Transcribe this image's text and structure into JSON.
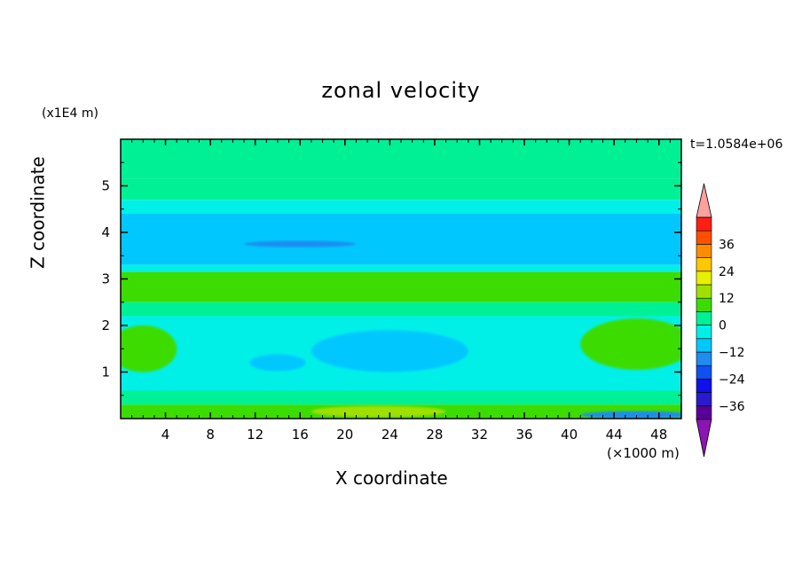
{
  "chart_data": {
    "type": "heatmap",
    "title": "zonal velocity",
    "xlabel": "X coordinate",
    "ylabel": "Z coordinate",
    "x_unit": "(×1000 m)",
    "y_unit": "(x1E4 m)",
    "timestamp": "t=1.0584e+06",
    "xlim": [
      0,
      50
    ],
    "ylim": [
      0,
      6
    ],
    "x_ticks": [
      4,
      8,
      12,
      16,
      20,
      24,
      28,
      32,
      36,
      40,
      44,
      48
    ],
    "y_ticks": [
      1,
      2,
      3,
      4,
      5
    ],
    "colorbar": {
      "ticks": [
        36,
        24,
        12,
        0,
        -12,
        -24,
        -36
      ],
      "levels": [
        -42,
        -36,
        -30,
        -24,
        -18,
        -12,
        -6,
        0,
        6,
        12,
        18,
        24,
        30,
        36,
        42
      ],
      "colors": [
        "#5a009a",
        "#2a1acd",
        "#1010e8",
        "#1050f0",
        "#1e8cf0",
        "#00c8ff",
        "#00f0e8",
        "#00f096",
        "#3cdc00",
        "#a0e000",
        "#e6f000",
        "#ffc800",
        "#ff8c00",
        "#ff5000",
        "#ff1e14"
      ],
      "under_color": "#8c14b4",
      "over_color": "#ffa0a0"
    },
    "bands": [
      {
        "z_top": 6.0,
        "z_bottom": 5.4,
        "value": 3
      },
      {
        "z_top": 5.4,
        "z_bottom": 5.15,
        "value": 0
      },
      {
        "z_top": 5.15,
        "z_bottom": 4.7,
        "value": 3
      },
      {
        "z_top": 4.7,
        "z_bottom": 4.4,
        "value": -3
      },
      {
        "z_top": 4.4,
        "z_bottom": 3.3,
        "value": -9
      },
      {
        "z_top": 3.3,
        "z_bottom": 3.15,
        "value": -3
      },
      {
        "z_top": 3.15,
        "z_bottom": 2.5,
        "value": 8
      },
      {
        "z_top": 2.5,
        "z_bottom": 2.2,
        "value": 3
      },
      {
        "z_top": 2.2,
        "z_bottom": 0.6,
        "value": -3
      },
      {
        "z_top": 0.6,
        "z_bottom": 0.3,
        "value": 3
      },
      {
        "z_top": 0.3,
        "z_bottom": 0.0,
        "value": 8
      }
    ],
    "features": [
      {
        "shape": "ellipse",
        "x": 24,
        "z": 1.45,
        "rx": 7,
        "rz": 0.45,
        "value": -9
      },
      {
        "shape": "ellipse",
        "x": 16,
        "z": 3.75,
        "rx": 5,
        "rz": 0.07,
        "value": -15
      },
      {
        "shape": "ellipse",
        "x": 46,
        "z": 1.6,
        "rx": 5,
        "rz": 0.55,
        "value": 8
      },
      {
        "shape": "ellipse",
        "x": 2,
        "z": 1.5,
        "rx": 3,
        "rz": 0.5,
        "value": 8
      },
      {
        "shape": "ellipse",
        "x": 23,
        "z": 0.15,
        "rx": 6,
        "rz": 0.12,
        "value": 12
      },
      {
        "shape": "ellipse",
        "x": 46,
        "z": 0.08,
        "rx": 5,
        "rz": 0.08,
        "value": -15
      },
      {
        "shape": "ellipse",
        "x": 14,
        "z": 1.2,
        "rx": 2.5,
        "rz": 0.18,
        "value": -9
      }
    ]
  }
}
